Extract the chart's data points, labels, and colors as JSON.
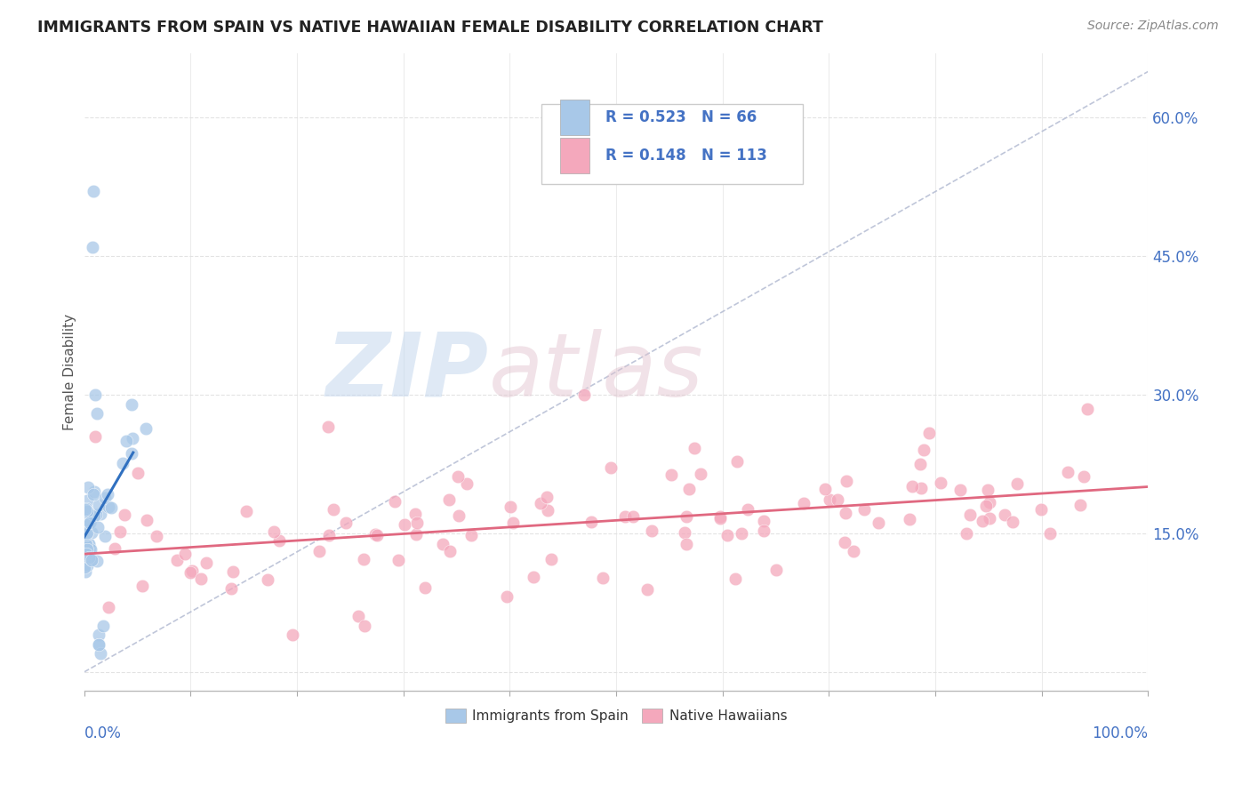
{
  "title": "IMMIGRANTS FROM SPAIN VS NATIVE HAWAIIAN FEMALE DISABILITY CORRELATION CHART",
  "source": "Source: ZipAtlas.com",
  "ylabel": "Female Disability",
  "xlim": [
    0.0,
    1.0
  ],
  "ylim": [
    -0.02,
    0.67
  ],
  "blue_R": 0.523,
  "blue_N": 66,
  "pink_R": 0.148,
  "pink_N": 113,
  "blue_color": "#a8c8e8",
  "pink_color": "#f4a8bc",
  "blue_edge_color": "#7aaad0",
  "pink_edge_color": "#e080a0",
  "blue_line_color": "#3070c0",
  "pink_line_color": "#e06880",
  "legend_label_blue": "Immigrants from Spain",
  "legend_label_pink": "Native Hawaiians",
  "background_color": "#ffffff",
  "grid_color": "#e0e0e0",
  "title_color": "#222222",
  "ytick_vals": [
    0.0,
    0.15,
    0.3,
    0.45,
    0.6
  ],
  "ytick_labels": [
    "",
    "15.0%",
    "30.0%",
    "45.0%",
    "60.0%"
  ],
  "diag_line_color": "#b0b8d0",
  "watermark_zip_color": "#c8d8ec",
  "watermark_atlas_color": "#d0b8c0"
}
